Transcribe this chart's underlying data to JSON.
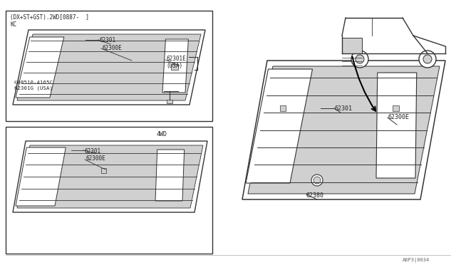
{
  "bg_color": "#ffffff",
  "border_color": "#000000",
  "line_color": "#444444",
  "text_color": "#222222",
  "fig_width": 6.4,
  "fig_height": 3.72,
  "title_text": "(DX+ST+GST).2WD[0887-  ]\nKC",
  "label_62301_main": "62301",
  "label_62300E_main": "62300E",
  "label_62301E": "62301E\n(USA)",
  "label_08510": "©08510-4165C\n62301G (USA)",
  "label_4wd": "4WD",
  "label_62301_4wd": "62301",
  "label_62300E_4wd": "62300E",
  "label_62301_center": "62301",
  "label_62300E_center": "62300E",
  "label_62380": "62380",
  "watermark": "A6P3(0034",
  "gray_fill": "#d0d0d0",
  "light_gray": "#e8e8e8",
  "dark_line": "#333333"
}
